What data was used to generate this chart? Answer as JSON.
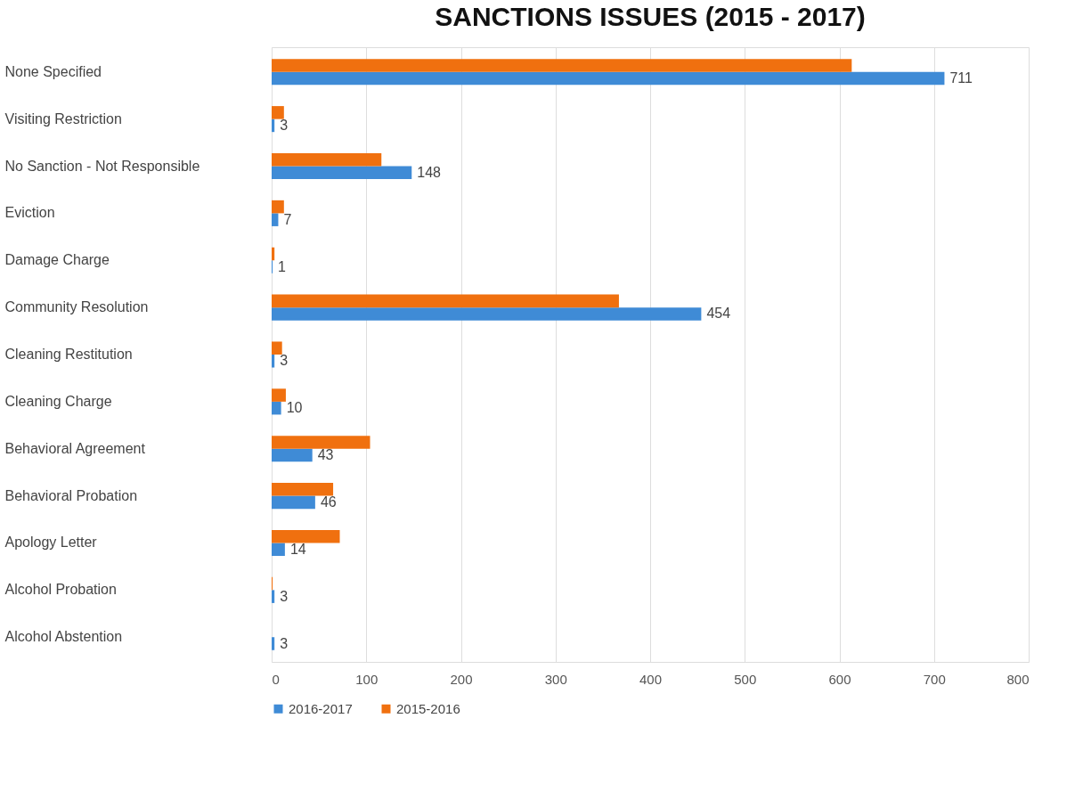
{
  "chart_data": {
    "type": "bar",
    "orientation": "horizontal",
    "title": "SANCTIONS ISSUES (2015 - 2017)",
    "categories": [
      "None Specified",
      "Visiting Restriction",
      "No Sanction - Not Responsible",
      "Eviction",
      "Damage Charge",
      "Community Resolution",
      "Cleaning Restitution",
      "Cleaning Charge",
      "Behavioral Agreement",
      "Behavioral Probation",
      "Apology Letter",
      "Alcohol Probation",
      "Alcohol Abstention"
    ],
    "series": [
      {
        "name": "2016-2017",
        "color": "#3f8bd6",
        "values": [
          711,
          3,
          148,
          7,
          1,
          454,
          3,
          10,
          43,
          46,
          14,
          3,
          3
        ],
        "value_labels": [
          "711",
          "3",
          "148",
          "7",
          "1",
          "454",
          "3",
          "10",
          "43",
          "46",
          "14",
          "3",
          "3"
        ]
      },
      {
        "name": "2015-2016",
        "color": "#f0700f",
        "values": [
          613,
          13,
          116,
          13,
          3,
          367,
          11,
          15,
          104,
          65,
          72,
          1,
          null
        ]
      }
    ],
    "xlim": [
      0,
      800
    ],
    "xticks": [
      0,
      100,
      200,
      300,
      400,
      500,
      600,
      700,
      800
    ],
    "grid": "x",
    "legend": "bottom"
  }
}
